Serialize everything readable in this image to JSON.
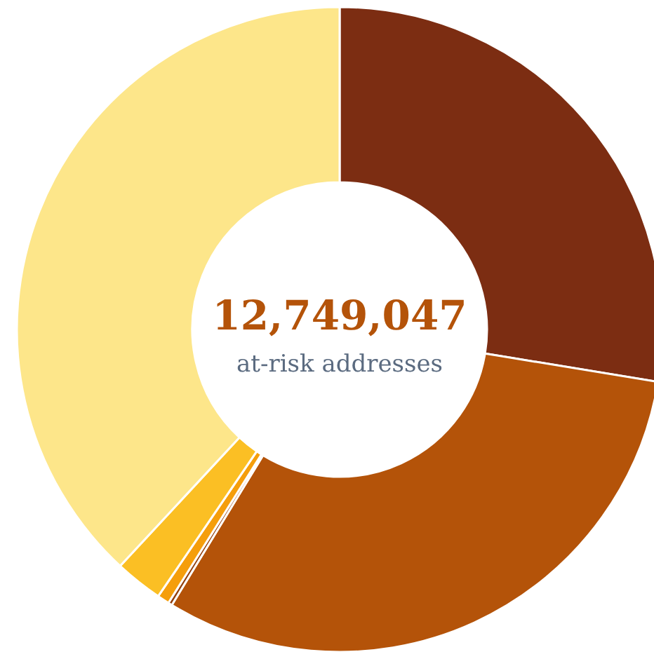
{
  "chart_data": {
    "type": "donut",
    "title": "12,749,047",
    "subtitle": "at-risk addresses",
    "categories": [
      null,
      null,
      null,
      null,
      null,
      null
    ],
    "values": [
      27.6,
      31.1,
      0.2,
      0.6,
      2.4,
      38.1
    ],
    "colors": [
      "#7c2d12",
      "#b45309",
      "#92400e",
      "#f59e0b",
      "#fbbf24",
      "#fde68a"
    ]
  }
}
